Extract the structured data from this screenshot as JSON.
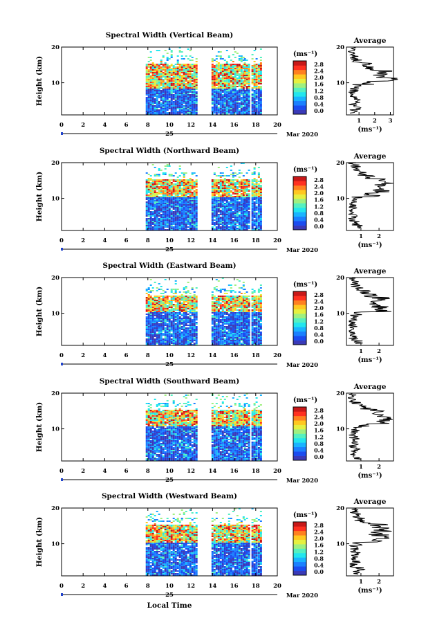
{
  "figure": {
    "x_axis_title": "Local Time",
    "date_day": "25",
    "date_month_year": "Mar 2020"
  },
  "colorbar": {
    "unit": "(ms⁻¹)",
    "ticks": [
      "0.0",
      "0.4",
      "0.8",
      "1.2",
      "1.6",
      "2.0",
      "2.4",
      "2.8"
    ],
    "colors": [
      "#3a3ab8",
      "#1a4cf0",
      "#1a80ff",
      "#19b4ff",
      "#22e6ee",
      "#55f0c0",
      "#9ff080",
      "#e6f040",
      "#ffc820",
      "#ff8020",
      "#ff3020",
      "#c81818"
    ]
  },
  "chart_data": [
    {
      "type": "heatmap",
      "title": "Spectral Width (Vertical Beam)",
      "ylabel": "Height (km)",
      "xlabel": "Local Time",
      "x_ticks": [
        "0",
        "2",
        "4",
        "6",
        "8",
        "10",
        "12",
        "14",
        "16",
        "18",
        "20"
      ],
      "y_ticks": [
        "20",
        "10"
      ],
      "xlim": [
        0,
        20
      ],
      "ylim": [
        1,
        20
      ],
      "data_coverage_hours": [
        [
          7.8,
          12.5
        ],
        [
          13.9,
          16.8
        ],
        [
          16.9,
          17.3
        ],
        [
          17.6,
          18.0
        ],
        [
          18.2,
          18.5
        ]
      ],
      "enhanced_layer_km": [
        8.5,
        15.5
      ],
      "average_profile": {
        "title": "Average",
        "xlabel": "(ms⁻¹)",
        "x_ticks": [
          "1",
          "2",
          "3"
        ],
        "y_ticks": [
          "20",
          "10"
        ],
        "xlim": [
          0.2,
          3.2
        ],
        "height_km": [
          2,
          3,
          4,
          5,
          6,
          7,
          8,
          9,
          10,
          11,
          12,
          13,
          14,
          15,
          16,
          17,
          18,
          19,
          20
        ],
        "width_ms": [
          0.7,
          0.9,
          0.6,
          0.8,
          0.7,
          0.6,
          0.7,
          0.9,
          1.6,
          2.9,
          2.4,
          2.6,
          1.8,
          1.5,
          0.9,
          0.7,
          0.6,
          0.5,
          0.6
        ]
      }
    },
    {
      "type": "heatmap",
      "title": "Spectral Width (Northward Beam)",
      "ylabel": "Height (km)",
      "xlabel": "Local Time",
      "x_ticks": [
        "0",
        "2",
        "4",
        "6",
        "8",
        "10",
        "12",
        "14",
        "16",
        "18",
        "20"
      ],
      "y_ticks": [
        "20",
        "10"
      ],
      "xlim": [
        0,
        20
      ],
      "ylim": [
        1,
        20
      ],
      "data_coverage_hours": [
        [
          7.8,
          12.5
        ],
        [
          13.9,
          16.8
        ],
        [
          16.9,
          17.3
        ],
        [
          17.6,
          18.0
        ],
        [
          18.2,
          18.5
        ]
      ],
      "enhanced_layer_km": [
        10.5,
        15.5
      ],
      "average_profile": {
        "title": "Average",
        "xlabel": "(ms⁻¹)",
        "x_ticks": [
          "1",
          "2"
        ],
        "y_ticks": [
          "20",
          "10"
        ],
        "xlim": [
          0.2,
          2.8
        ],
        "height_km": [
          2,
          3,
          4,
          5,
          6,
          7,
          8,
          9,
          10,
          11,
          12,
          13,
          14,
          15,
          16,
          17,
          18,
          19,
          20
        ],
        "width_ms": [
          0.9,
          0.8,
          0.6,
          0.6,
          0.5,
          0.6,
          0.5,
          0.7,
          0.8,
          1.6,
          2.2,
          1.9,
          2.3,
          2.0,
          1.4,
          1.0,
          0.9,
          0.7,
          0.5
        ]
      }
    },
    {
      "type": "heatmap",
      "title": "Spectral Width (Eastward Beam)",
      "ylabel": "Height (km)",
      "xlabel": "Local Time",
      "x_ticks": [
        "0",
        "2",
        "4",
        "6",
        "8",
        "10",
        "12",
        "14",
        "16",
        "18",
        "20"
      ],
      "y_ticks": [
        "20",
        "10"
      ],
      "xlim": [
        0,
        20
      ],
      "ylim": [
        1,
        20
      ],
      "data_coverage_hours": [
        [
          7.8,
          12.5
        ],
        [
          13.9,
          16.8
        ],
        [
          16.9,
          17.3
        ],
        [
          17.6,
          18.0
        ],
        [
          18.2,
          18.5
        ]
      ],
      "enhanced_layer_km": [
        10.5,
        15.0
      ],
      "average_profile": {
        "title": "Average",
        "xlabel": "(ms⁻¹)",
        "x_ticks": [
          "1",
          "2"
        ],
        "y_ticks": [
          "20",
          "10"
        ],
        "xlim": [
          0.2,
          2.8
        ],
        "height_km": [
          2,
          3,
          4,
          5,
          6,
          7,
          8,
          9,
          10,
          11,
          12,
          13,
          14,
          15,
          16,
          17,
          18,
          19,
          20
        ],
        "width_ms": [
          0.8,
          0.6,
          0.7,
          0.5,
          0.6,
          0.5,
          0.6,
          0.6,
          0.9,
          2.2,
          2.0,
          1.8,
          2.1,
          1.5,
          1.2,
          0.9,
          0.7,
          0.6,
          0.5
        ]
      }
    },
    {
      "type": "heatmap",
      "title": "Spectral Width (Southward Beam)",
      "ylabel": "Height (km)",
      "xlabel": "Local Time",
      "x_ticks": [
        "0",
        "2",
        "4",
        "6",
        "8",
        "10",
        "12",
        "14",
        "16",
        "18",
        "20"
      ],
      "y_ticks": [
        "20",
        "10"
      ],
      "xlim": [
        0,
        20
      ],
      "ylim": [
        1,
        20
      ],
      "data_coverage_hours": [
        [
          7.8,
          12.5
        ],
        [
          13.9,
          16.8
        ],
        [
          16.9,
          17.3
        ],
        [
          17.6,
          18.0
        ],
        [
          18.2,
          18.5
        ]
      ],
      "enhanced_layer_km": [
        11.0,
        15.5
      ],
      "average_profile": {
        "title": "Average",
        "xlabel": "(ms⁻¹)",
        "x_ticks": [
          "1",
          "2"
        ],
        "y_ticks": [
          "20",
          "10"
        ],
        "xlim": [
          0.2,
          2.8
        ],
        "height_km": [
          2,
          3,
          4,
          5,
          6,
          7,
          8,
          9,
          10,
          11,
          12,
          13,
          14,
          15,
          16,
          17,
          18,
          19,
          20
        ],
        "width_ms": [
          0.8,
          0.7,
          0.7,
          0.6,
          0.6,
          0.7,
          0.6,
          0.7,
          0.7,
          1.2,
          2.4,
          2.6,
          2.2,
          1.8,
          1.2,
          0.8,
          0.6,
          0.5,
          0.6
        ]
      }
    },
    {
      "type": "heatmap",
      "title": "Spectral Width (Westward Beam)",
      "ylabel": "Height (km)",
      "xlabel": "Local Time",
      "x_ticks": [
        "0",
        "2",
        "4",
        "6",
        "8",
        "10",
        "12",
        "14",
        "16",
        "18",
        "20"
      ],
      "y_ticks": [
        "20",
        "10"
      ],
      "xlim": [
        0,
        20
      ],
      "ylim": [
        1,
        20
      ],
      "data_coverage_hours": [
        [
          7.8,
          12.5
        ],
        [
          13.9,
          16.8
        ],
        [
          16.9,
          17.3
        ],
        [
          17.6,
          18.0
        ],
        [
          18.2,
          18.5
        ]
      ],
      "enhanced_layer_km": [
        10.5,
        15.5
      ],
      "average_profile": {
        "title": "Average",
        "xlabel": "(ms⁻¹)",
        "x_ticks": [
          "1",
          "2"
        ],
        "y_ticks": [
          "20",
          "10"
        ],
        "xlim": [
          0.2,
          2.8
        ],
        "height_km": [
          2,
          3,
          4,
          5,
          6,
          7,
          8,
          9,
          10,
          11,
          12,
          13,
          14,
          15,
          16,
          17,
          18,
          19,
          20
        ],
        "width_ms": [
          0.8,
          0.9,
          0.6,
          0.7,
          0.6,
          0.6,
          0.7,
          0.6,
          0.8,
          1.7,
          2.1,
          1.9,
          2.2,
          2.0,
          1.3,
          0.9,
          0.8,
          0.6,
          0.5
        ]
      }
    }
  ]
}
